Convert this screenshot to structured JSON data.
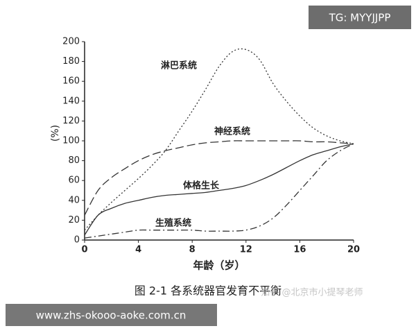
{
  "chart_data": {
    "type": "line",
    "y_label": "(%)",
    "x_label": "年龄（岁）",
    "caption": "图 2-1   各系统器官发育不平衡",
    "x": [
      0,
      1,
      2,
      3,
      4,
      5,
      6,
      7,
      8,
      9,
      10,
      11,
      12,
      13,
      14,
      15,
      16,
      17,
      18,
      19,
      20
    ],
    "series": [
      {
        "name": "淋巴系统",
        "color": "#333333",
        "values": [
          10,
          25,
          38,
          50,
          62,
          75,
          90,
          110,
          130,
          152,
          175,
          190,
          192,
          182,
          158,
          140,
          125,
          113,
          105,
          100,
          97
        ]
      },
      {
        "name": "神经系统",
        "color": "#333333",
        "values": [
          25,
          50,
          63,
          72,
          80,
          86,
          90,
          93,
          96,
          98,
          99,
          100,
          100,
          100,
          100,
          100,
          100,
          99,
          99,
          98,
          97
        ]
      },
      {
        "name": "体格生长",
        "color": "#333333",
        "values": [
          5,
          25,
          32,
          37,
          40,
          43,
          45,
          46,
          47,
          48,
          50,
          52,
          55,
          60,
          66,
          73,
          80,
          86,
          90,
          94,
          97
        ]
      },
      {
        "name": "生殖系统",
        "color": "#333333",
        "values": [
          2,
          4,
          6,
          8,
          10,
          10,
          10,
          10,
          10,
          9,
          9,
          9,
          10,
          14,
          22,
          35,
          50,
          65,
          80,
          90,
          97
        ]
      }
    ],
    "xlim": [
      0,
      20
    ],
    "xticks": [
      0,
      4,
      8,
      12,
      16,
      20
    ],
    "ylim": [
      0,
      200
    ],
    "yticks": [
      0,
      20,
      40,
      60,
      80,
      100,
      120,
      140,
      160,
      180,
      200
    ]
  },
  "watermarks": {
    "top": "TG: MYYJJPP",
    "bottom": "www.zhs-okooo-aoke.com.cn",
    "caption_overlay": "知乎 @北京市小提琴老师"
  }
}
